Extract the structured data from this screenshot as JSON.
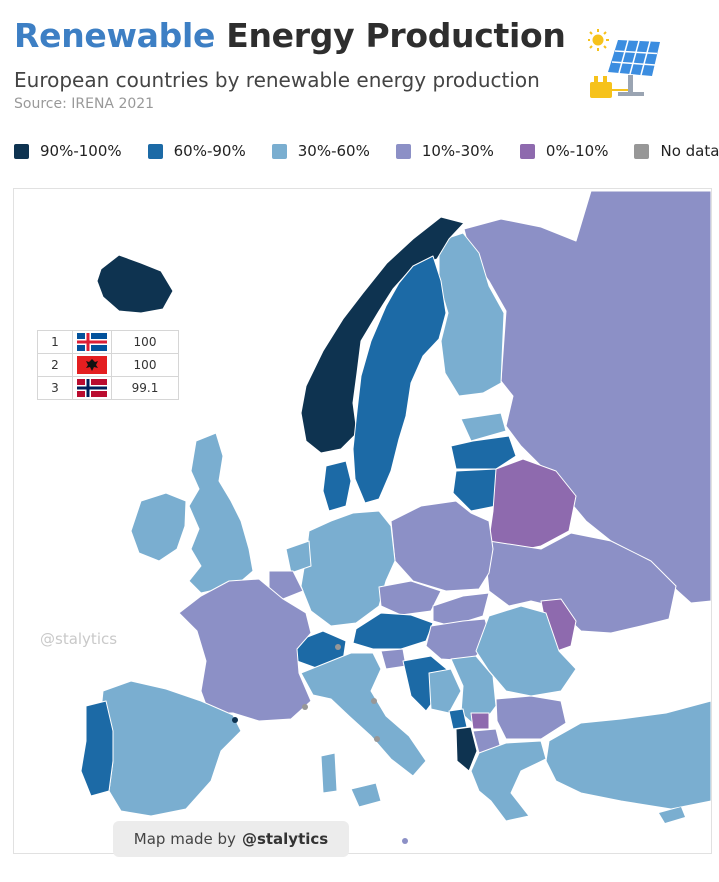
{
  "header": {
    "title_part1": "Renewable",
    "title_part2": "Energy Production",
    "subtitle": "European countries by renewable energy production",
    "source": "Source: IRENA 2021"
  },
  "legend": [
    {
      "label": "90%-100%",
      "color": "#0e3350"
    },
    {
      "label": "60%-90%",
      "color": "#1c6aa6"
    },
    {
      "label": "30%-60%",
      "color": "#7aaed0"
    },
    {
      "label": "10%-30%",
      "color": "#8c90c6"
    },
    {
      "label": "0%-10%",
      "color": "#8e6aae"
    },
    {
      "label": "No data",
      "color": "#979797"
    }
  ],
  "ranking": [
    {
      "rank": "1",
      "flag": "iceland-flag",
      "value": "100"
    },
    {
      "rank": "2",
      "flag": "albania-flag",
      "value": "100"
    },
    {
      "rank": "3",
      "flag": "norway-flag",
      "value": "99.1"
    }
  ],
  "watermark": "@stalytics",
  "credit": {
    "prefix": "Map made by",
    "handle": "@stalytics"
  },
  "logo_icon": "solar-panel-icon"
}
